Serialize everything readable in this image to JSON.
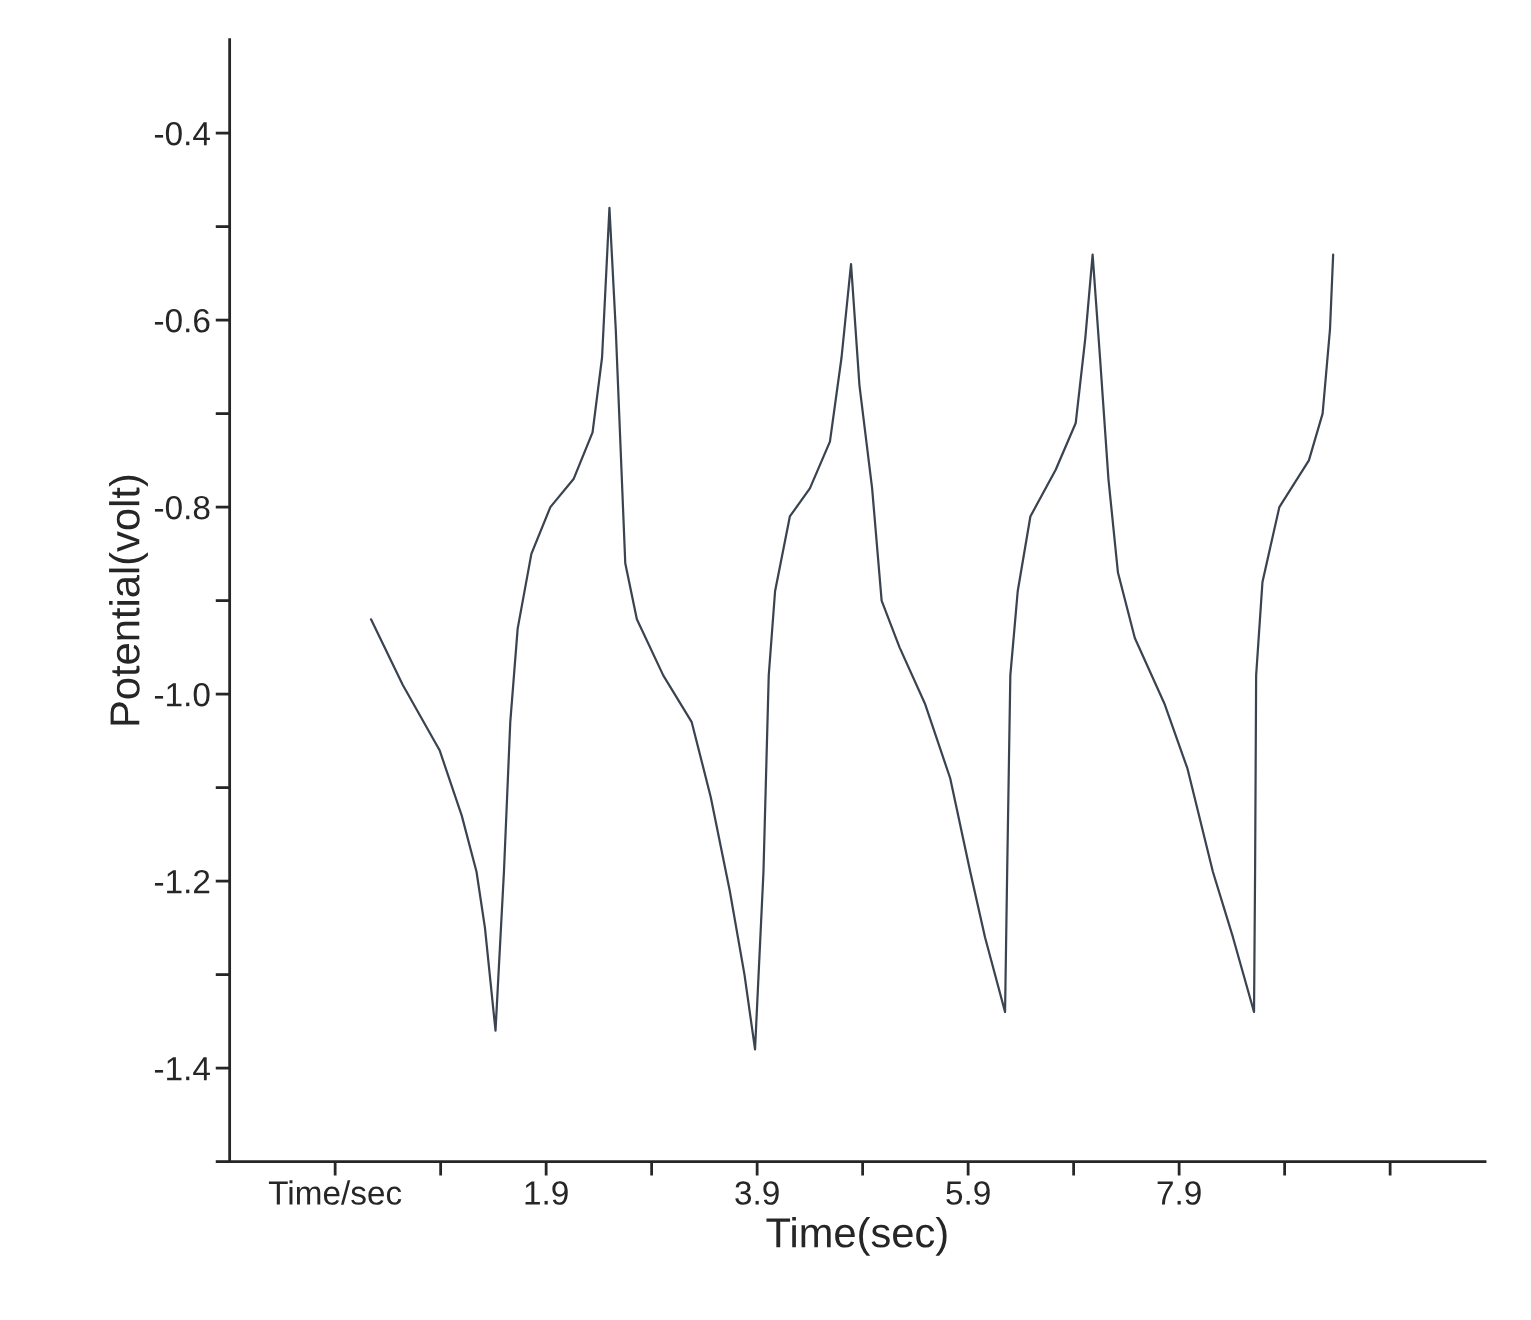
{
  "chart_data": {
    "type": "line",
    "xlabel": "Time(sec)",
    "ylabel": "Potential(volt)",
    "xlim": [
      -1.1,
      10.8
    ],
    "ylim": [
      -1.5,
      -0.3
    ],
    "xticks": [
      {
        "value": -0.1,
        "label": "Time/sec"
      },
      {
        "value": 0.9,
        "label": null
      },
      1.9,
      {
        "value": 2.9,
        "label": null
      },
      3.9,
      {
        "value": 4.9,
        "label": null
      },
      5.9,
      {
        "value": 6.9,
        "label": null
      },
      7.9,
      {
        "value": 8.9,
        "label": null
      },
      {
        "value": 9.9,
        "label": null
      }
    ],
    "yticks": [
      {
        "value": -1.5,
        "label": null
      },
      -1.4,
      {
        "value": -1.3,
        "label": null
      },
      -1.2,
      {
        "value": -1.1,
        "label": null
      },
      {
        "value": -1.0,
        "label": "-1.0"
      },
      {
        "value": -0.9,
        "label": null
      },
      -0.8,
      {
        "value": -0.7,
        "label": null
      },
      -0.6,
      {
        "value": -0.5,
        "label": null
      },
      -0.4
    ],
    "grid": false,
    "legend": false,
    "marker": "none",
    "line_style": "solid",
    "series": [
      {
        "color": "#3a4350",
        "x": [
          0.24,
          0.54,
          0.89,
          1.1,
          1.24,
          1.32,
          1.42,
          1.5,
          1.56,
          1.63,
          1.76,
          1.94,
          2.16,
          2.34,
          2.43,
          2.5,
          2.56,
          2.65,
          2.76,
          3.01,
          3.28,
          3.46,
          3.64,
          3.78,
          3.88,
          3.96,
          4.01,
          4.07,
          4.21,
          4.4,
          4.59,
          4.7,
          4.79,
          4.87,
          4.99,
          5.08,
          5.25,
          5.49,
          5.73,
          5.92,
          6.06,
          6.25,
          6.27,
          6.3,
          6.37,
          6.49,
          6.73,
          6.92,
          7.01,
          7.08,
          7.15,
          7.23,
          7.32,
          7.48,
          7.76,
          7.98,
          8.22,
          8.41,
          8.61,
          8.62,
          8.63,
          8.69,
          8.85,
          9.13,
          9.26,
          9.33,
          9.36
        ],
        "values": [
          -0.92,
          -0.99,
          -1.06,
          -1.13,
          -1.19,
          -1.25,
          -1.36,
          -1.19,
          -1.03,
          -0.93,
          -0.85,
          -0.8,
          -0.77,
          -0.72,
          -0.64,
          -0.48,
          -0.61,
          -0.86,
          -0.92,
          -0.98,
          -1.03,
          -1.11,
          -1.21,
          -1.3,
          -1.38,
          -1.19,
          -0.98,
          -0.89,
          -0.81,
          -0.78,
          -0.73,
          -0.64,
          -0.54,
          -0.67,
          -0.78,
          -0.9,
          -0.95,
          -1.01,
          -1.09,
          -1.19,
          -1.26,
          -1.34,
          -1.19,
          -0.98,
          -0.89,
          -0.81,
          -0.76,
          -0.71,
          -0.62,
          -0.53,
          -0.64,
          -0.77,
          -0.87,
          -0.94,
          -1.01,
          -1.08,
          -1.19,
          -1.26,
          -1.34,
          -1.19,
          -0.98,
          -0.88,
          -0.8,
          -0.75,
          -0.7,
          -0.61,
          -0.53
        ]
      }
    ]
  }
}
